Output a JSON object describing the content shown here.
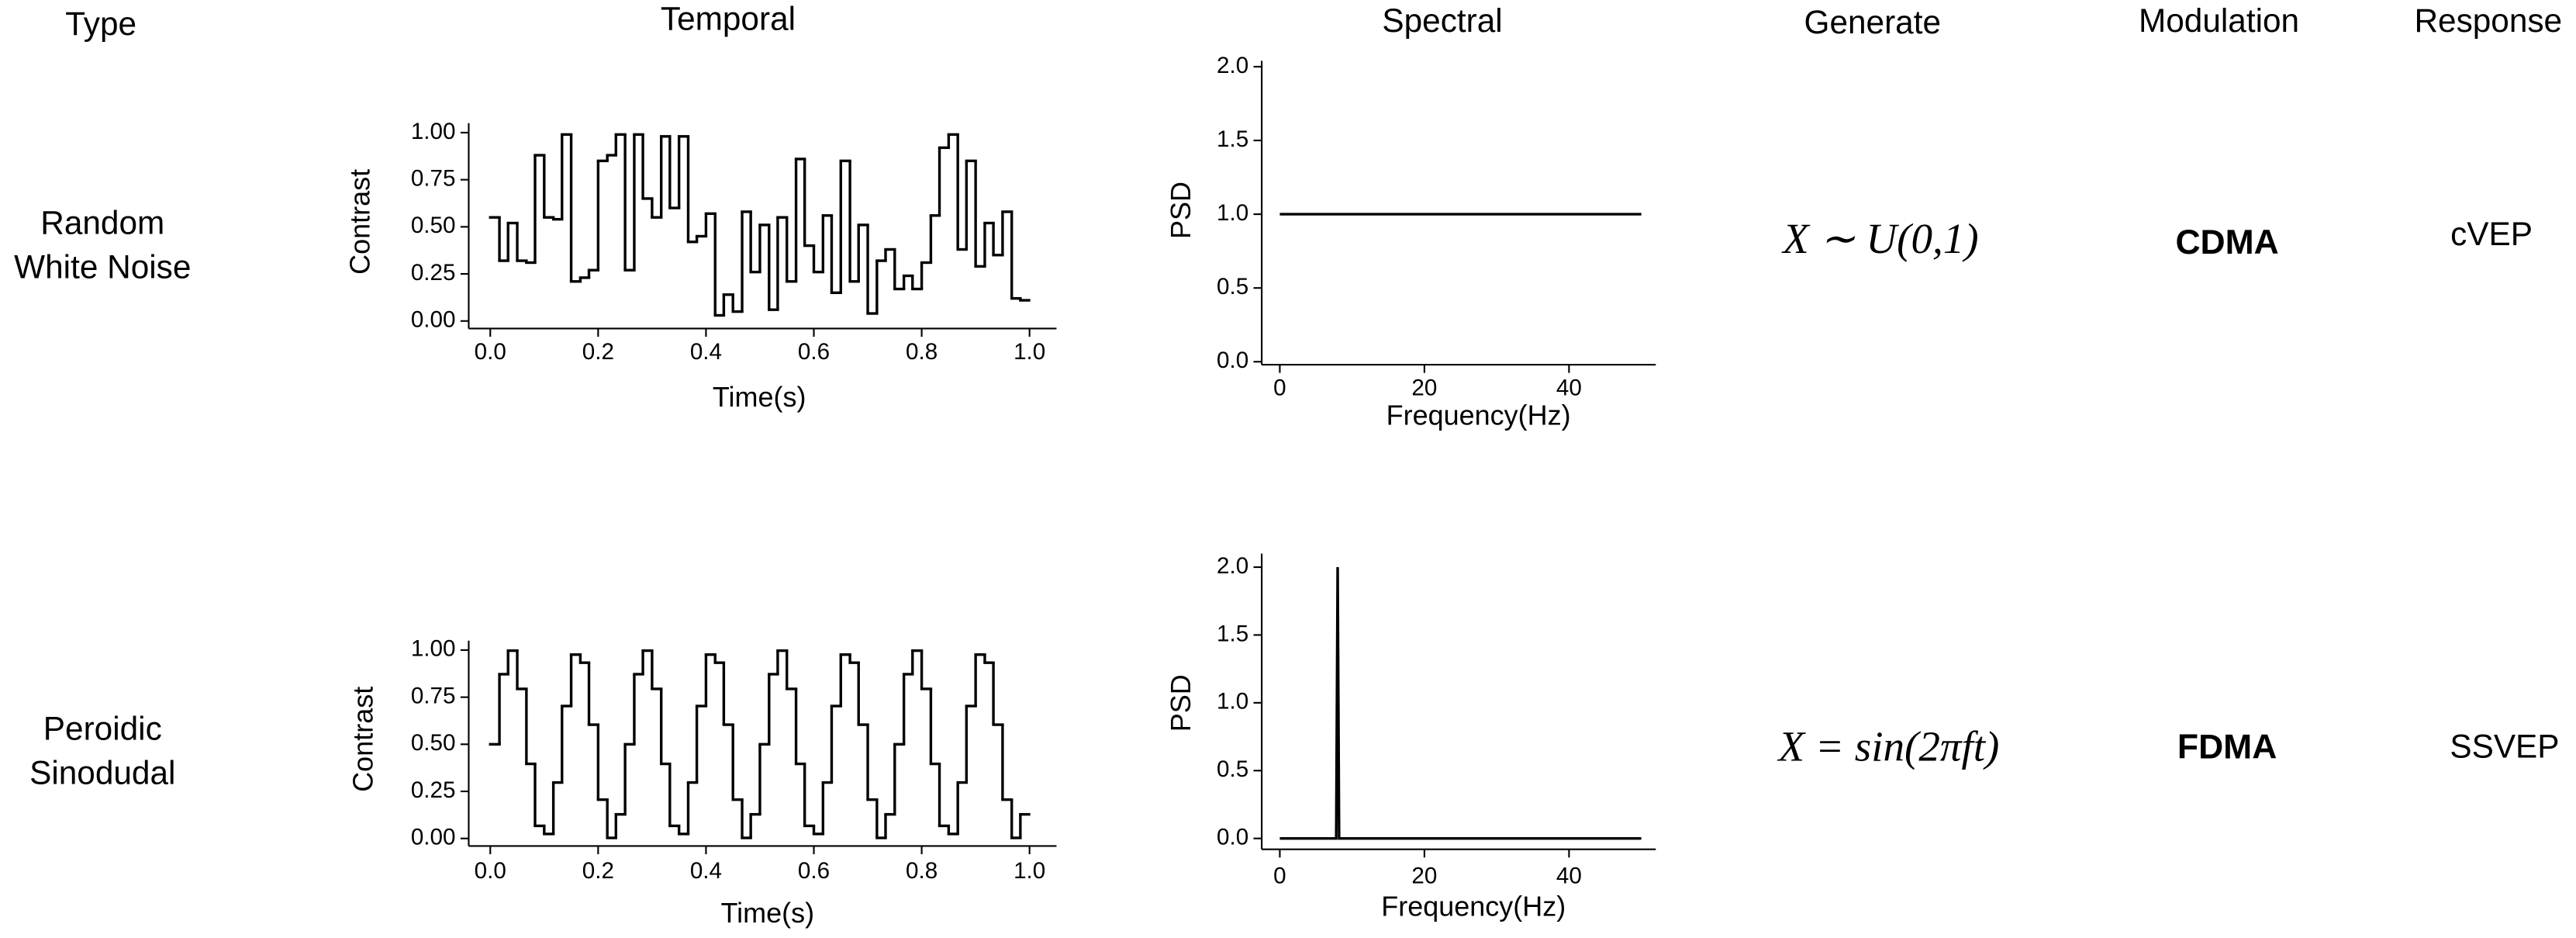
{
  "columns": [
    "Type",
    "Temporal",
    "Spectral",
    "Generate",
    "Modulation",
    "Response"
  ],
  "rows": [
    {
      "type": [
        "Random",
        "White Noise"
      ],
      "generate": "X ∼ U(0,1)",
      "modulation": "CDMA",
      "response": "cVEP"
    },
    {
      "type": [
        "Peroidic",
        "Sinodudal"
      ],
      "generate": "X = sin(2πft)",
      "modulation": "FDMA",
      "response": "SSVEP"
    }
  ],
  "chart_data": [
    {
      "type": "step",
      "xlabel": "Time(s)",
      "ylabel": "Contrast",
      "color": "#000000",
      "x": [
        0.0,
        0.017,
        0.033,
        0.05,
        0.067,
        0.083,
        0.1,
        0.117,
        0.133,
        0.15,
        0.167,
        0.183,
        0.2,
        0.217,
        0.233,
        0.25,
        0.267,
        0.283,
        0.3,
        0.317,
        0.333,
        0.35,
        0.367,
        0.383,
        0.4,
        0.417,
        0.433,
        0.45,
        0.467,
        0.483,
        0.5,
        0.517,
        0.533,
        0.55,
        0.567,
        0.583,
        0.6,
        0.617,
        0.633,
        0.65,
        0.667,
        0.683,
        0.7,
        0.717,
        0.733,
        0.75,
        0.767,
        0.783,
        0.8,
        0.817,
        0.833,
        0.85,
        0.867,
        0.883,
        0.9,
        0.917,
        0.933,
        0.95,
        0.967,
        0.983
      ],
      "values": [
        0.55,
        0.32,
        0.52,
        0.32,
        0.31,
        0.88,
        0.55,
        0.54,
        0.99,
        0.21,
        0.23,
        0.27,
        0.85,
        0.88,
        0.99,
        0.27,
        0.99,
        0.65,
        0.55,
        0.98,
        0.6,
        0.98,
        0.42,
        0.45,
        0.57,
        0.03,
        0.14,
        0.05,
        0.58,
        0.26,
        0.51,
        0.06,
        0.55,
        0.21,
        0.86,
        0.4,
        0.26,
        0.56,
        0.15,
        0.85,
        0.21,
        0.51,
        0.04,
        0.32,
        0.38,
        0.17,
        0.24,
        0.17,
        0.31,
        0.56,
        0.92,
        0.99,
        0.38,
        0.85,
        0.29,
        0.52,
        0.35,
        0.58,
        0.12,
        0.11
      ],
      "xlim": [
        -0.04,
        1.05
      ],
      "ylim": [
        -0.04,
        1.05
      ],
      "xticks": [
        {
          "value": 0,
          "label": "0.0"
        },
        0.2,
        0.4,
        0.6,
        0.8,
        {
          "value": 1,
          "label": "1.0"
        }
      ],
      "yticks": [
        {
          "value": 0,
          "label": "0.00"
        },
        {
          "value": 0.25,
          "label": "0.25"
        },
        {
          "value": 0.5,
          "label": "0.50"
        },
        {
          "value": 0.75,
          "label": "0.75"
        },
        {
          "value": 1,
          "label": "1.00"
        }
      ]
    },
    {
      "type": "line",
      "xlabel": "Frequency(Hz)",
      "ylabel": "PSD",
      "color": "#000000",
      "x": [
        0,
        50
      ],
      "values": [
        1,
        1
      ],
      "xlim": [
        -2.5,
        52
      ],
      "ylim": [
        -0.02,
        2.04
      ],
      "xticks": [
        0,
        20,
        40
      ],
      "yticks": [
        {
          "value": 0,
          "label": "0.0"
        },
        0.5,
        {
          "value": 1,
          "label": "1.0"
        },
        1.5,
        {
          "value": 2,
          "label": "2.0"
        }
      ]
    },
    {
      "type": "step",
      "xlabel": "Time(s)",
      "ylabel": "Contrast",
      "color": "#000000",
      "x": [
        0.0,
        0.017,
        0.033,
        0.05,
        0.067,
        0.083,
        0.1,
        0.117,
        0.133,
        0.15,
        0.167,
        0.183,
        0.2,
        0.217,
        0.233,
        0.25,
        0.267,
        0.283,
        0.3,
        0.317,
        0.333,
        0.35,
        0.367,
        0.383,
        0.4,
        0.417,
        0.433,
        0.45,
        0.467,
        0.483,
        0.5,
        0.517,
        0.533,
        0.55,
        0.567,
        0.583,
        0.6,
        0.617,
        0.633,
        0.65,
        0.667,
        0.683,
        0.7,
        0.717,
        0.733,
        0.75,
        0.767,
        0.783,
        0.8,
        0.817,
        0.833,
        0.85,
        0.867,
        0.883,
        0.9,
        0.917,
        0.933,
        0.95,
        0.967,
        0.983
      ],
      "values": [
        0.5,
        0.872,
        0.997,
        0.794,
        0.396,
        0.067,
        0.024,
        0.297,
        0.703,
        0.976,
        0.933,
        0.604,
        0.206,
        0.003,
        0.128,
        0.5,
        0.872,
        0.997,
        0.794,
        0.396,
        0.067,
        0.024,
        0.297,
        0.703,
        0.976,
        0.933,
        0.604,
        0.206,
        0.003,
        0.128,
        0.5,
        0.872,
        0.997,
        0.794,
        0.396,
        0.067,
        0.024,
        0.297,
        0.703,
        0.976,
        0.933,
        0.604,
        0.206,
        0.003,
        0.128,
        0.5,
        0.872,
        0.997,
        0.794,
        0.396,
        0.067,
        0.024,
        0.297,
        0.703,
        0.976,
        0.933,
        0.604,
        0.206,
        0.003,
        0.128
      ],
      "xlim": [
        -0.04,
        1.05
      ],
      "ylim": [
        -0.04,
        1.05
      ],
      "xticks": [
        {
          "value": 0,
          "label": "0.0"
        },
        0.2,
        0.4,
        0.6,
        0.8,
        {
          "value": 1,
          "label": "1.0"
        }
      ],
      "yticks": [
        {
          "value": 0,
          "label": "0.00"
        },
        {
          "value": 0.25,
          "label": "0.25"
        },
        {
          "value": 0.5,
          "label": "0.50"
        },
        {
          "value": 0.75,
          "label": "0.75"
        },
        {
          "value": 1,
          "label": "1.00"
        }
      ]
    },
    {
      "type": "line",
      "xlabel": "Frequency(Hz)",
      "ylabel": "PSD",
      "color": "#000000",
      "x": [
        0,
        7.8,
        8,
        8.2,
        50
      ],
      "values": [
        0,
        0,
        2,
        0,
        0
      ],
      "xlim": [
        -2.5,
        52
      ],
      "ylim": [
        -0.08,
        2.1
      ],
      "xticks": [
        0,
        20,
        40
      ],
      "yticks": [
        {
          "value": 0,
          "label": "0.0"
        },
        0.5,
        {
          "value": 1,
          "label": "1.0"
        },
        1.5,
        {
          "value": 2,
          "label": "2.0"
        }
      ]
    }
  ]
}
